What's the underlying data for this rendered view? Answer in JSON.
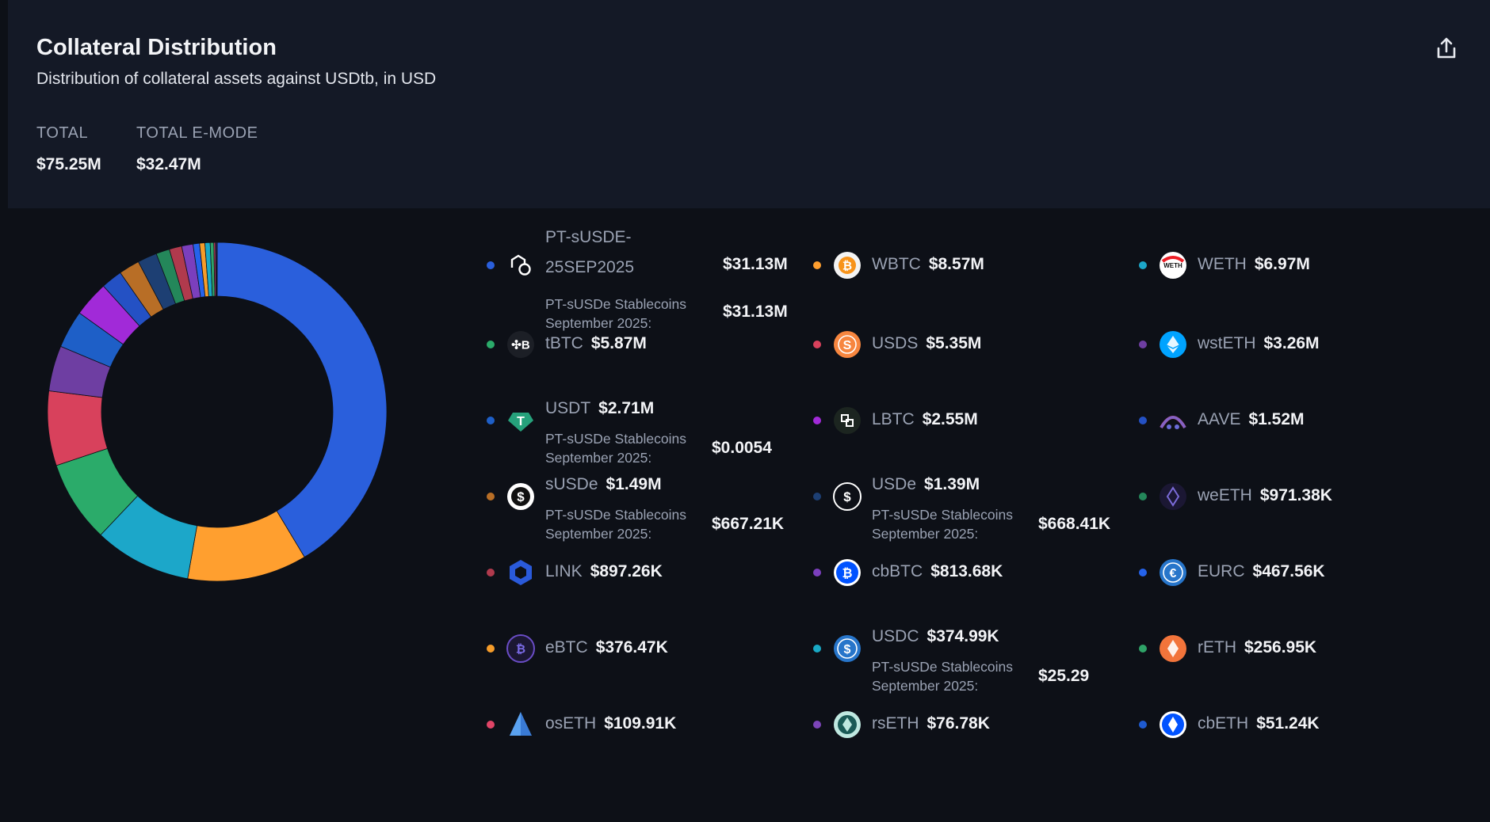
{
  "header": {
    "title": "Collateral Distribution",
    "subtitle": "Distribution of collateral assets against USDtb, in USD",
    "total_label": "TOTAL",
    "total_value": "$75.25M",
    "emode_label": "TOTAL E-MODE",
    "emode_value": "$32.47M",
    "export_icon": "share-export-icon"
  },
  "chart_data": {
    "type": "pie",
    "donut": true,
    "title": "",
    "legend": "right",
    "slices": [
      {
        "label": "PT-sUSDE-25SEP2025",
        "value": 31.13,
        "color": "#2a5fdc"
      },
      {
        "label": "WBTC",
        "value": 8.57,
        "color": "#ff9f2f"
      },
      {
        "label": "WETH",
        "value": 6.97,
        "color": "#1ca7c9"
      },
      {
        "label": "tBTC",
        "value": 5.87,
        "color": "#2bab6a"
      },
      {
        "label": "USDS",
        "value": 5.35,
        "color": "#d8415c"
      },
      {
        "label": "wstETH",
        "value": 3.26,
        "color": "#6e3ea2"
      },
      {
        "label": "USDT",
        "value": 2.71,
        "color": "#1e5fc7"
      },
      {
        "label": "LBTC",
        "value": 2.55,
        "color": "#a12ad8"
      },
      {
        "label": "AAVE",
        "value": 1.52,
        "color": "#2451c4"
      },
      {
        "label": "sUSDe",
        "value": 1.49,
        "color": "#b86e26"
      },
      {
        "label": "USDe",
        "value": 1.39,
        "color": "#1d3f73"
      },
      {
        "label": "weETH",
        "value": 0.97138,
        "color": "#24875a"
      },
      {
        "label": "LINK",
        "value": 0.89726,
        "color": "#b03a4d"
      },
      {
        "label": "cbBTC",
        "value": 0.81368,
        "color": "#7b3fbd"
      },
      {
        "label": "EURC",
        "value": 0.46756,
        "color": "#2563eb"
      },
      {
        "label": "eBTC",
        "value": 0.37647,
        "color": "#f59c2a"
      },
      {
        "label": "USDC",
        "value": 0.37499,
        "color": "#19a9c5"
      },
      {
        "label": "rETH",
        "value": 0.25695,
        "color": "#2fa368"
      },
      {
        "label": "osETH",
        "value": 0.10991,
        "color": "#e04567"
      },
      {
        "label": "rsETH",
        "value": 0.07678,
        "color": "#7c45b8"
      },
      {
        "label": "cbETH",
        "value": 0.05124,
        "color": "#1f5bd0"
      }
    ]
  },
  "legend": [
    {
      "name": "PT-sUSDE-25SEP2025",
      "value": "$31.13M",
      "sub": "PT-sUSDe Stablecoins September 2025:",
      "sub_value": "$31.13M",
      "icon": "pendle-icon"
    },
    {
      "name": "WBTC",
      "value": "$8.57M",
      "icon": "wbtc-icon"
    },
    {
      "name": "WETH",
      "value": "$6.97M",
      "icon": "weth-icon",
      "icon_text": "WETH"
    },
    {
      "name": "tBTC",
      "value": "$5.87M",
      "icon": "tbtc-icon"
    },
    {
      "name": "USDS",
      "value": "$5.35M",
      "icon": "usds-icon"
    },
    {
      "name": "wstETH",
      "value": "$3.26M",
      "icon": "wsteth-icon"
    },
    {
      "name": "USDT",
      "value": "$2.71M",
      "sub": "PT-sUSDe Stablecoins September 2025:",
      "sub_value": "$0.0054",
      "icon": "usdt-icon"
    },
    {
      "name": "LBTC",
      "value": "$2.55M",
      "icon": "lbtc-icon"
    },
    {
      "name": "AAVE",
      "value": "$1.52M",
      "icon": "aave-icon"
    },
    {
      "name": "sUSDe",
      "value": "$1.49M",
      "sub": "PT-sUSDe Stablecoins September 2025:",
      "sub_value": "$667.21K",
      "icon": "susde-icon"
    },
    {
      "name": "USDe",
      "value": "$1.39M",
      "sub": "PT-sUSDe Stablecoins September 2025:",
      "sub_value": "$668.41K",
      "icon": "usde-icon"
    },
    {
      "name": "weETH",
      "value": "$971.38K",
      "icon": "weeth-icon"
    },
    {
      "name": "LINK",
      "value": "$897.26K",
      "icon": "link-icon"
    },
    {
      "name": "cbBTC",
      "value": "$813.68K",
      "icon": "cbbtc-icon"
    },
    {
      "name": "EURC",
      "value": "$467.56K",
      "icon": "eurc-icon"
    },
    {
      "name": "eBTC",
      "value": "$376.47K",
      "icon": "ebtc-icon"
    },
    {
      "name": "USDC",
      "value": "$374.99K",
      "sub": "PT-sUSDe Stablecoins September 2025:",
      "sub_value": "$25.29",
      "icon": "usdc-icon"
    },
    {
      "name": "rETH",
      "value": "$256.95K",
      "icon": "reth-icon"
    },
    {
      "name": "osETH",
      "value": "$109.91K",
      "icon": "oseth-icon"
    },
    {
      "name": "rsETH",
      "value": "$76.78K",
      "icon": "rseth-icon"
    },
    {
      "name": "cbETH",
      "value": "$51.24K",
      "icon": "cbeth-icon"
    }
  ]
}
